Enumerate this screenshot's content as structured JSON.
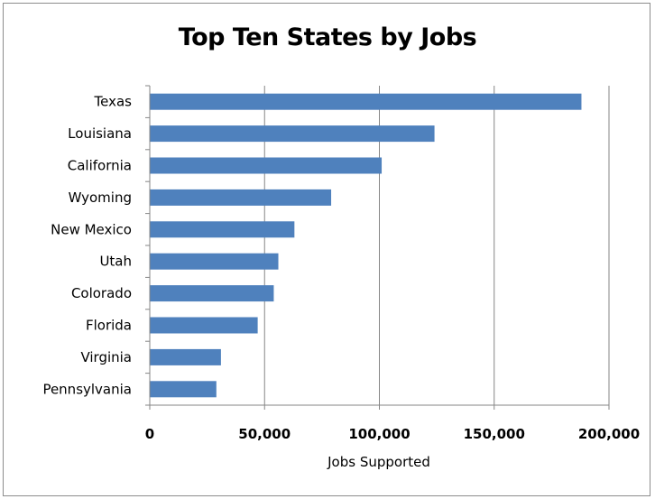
{
  "chart_data": {
    "type": "bar",
    "orientation": "horizontal",
    "title": "Top Ten States by Jobs",
    "xlabel": "Jobs Supported",
    "ylabel": "",
    "categories": [
      "Texas",
      "Louisiana",
      "California",
      "Wyoming",
      "New Mexico",
      "Utah",
      "Colorado",
      "Florida",
      "Virginia",
      "Pennsylvania"
    ],
    "values": [
      188000,
      124000,
      101000,
      79000,
      63000,
      56000,
      54000,
      47000,
      31000,
      29000
    ],
    "xlim": [
      0,
      200000
    ],
    "xticks": [
      0,
      50000,
      100000,
      150000,
      200000
    ],
    "xtick_labels": [
      "0",
      "50,000",
      "100,000",
      "150,000",
      "200,000"
    ],
    "grid": true,
    "legend": "none",
    "bar_color": "#4f81bd",
    "grid_color": "#868686"
  }
}
